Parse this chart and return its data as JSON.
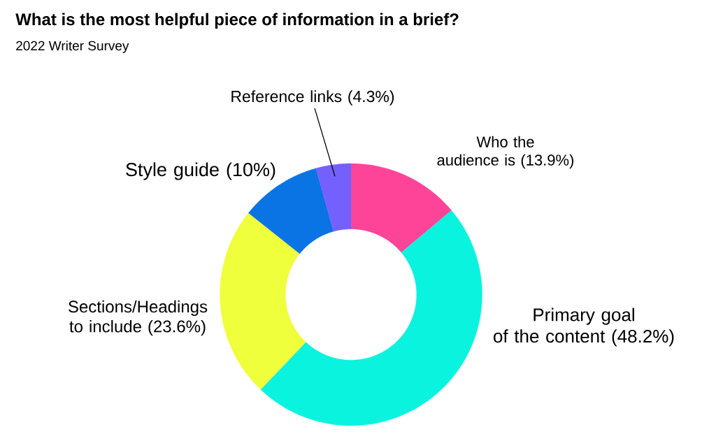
{
  "chart_data": {
    "type": "donut",
    "title": "What is the most helpful piece of information in a brief?",
    "subtitle": "2022 Writer Survey",
    "categories": [
      "Who the audience is (13.9%)",
      "Primary goal of the content (48.2%)",
      "Sections/Headings to include (23.6%)",
      "Style guide (10%)",
      "Reference links (4.3%)"
    ],
    "values": [
      13.9,
      48.2,
      23.6,
      10,
      4.3
    ],
    "colors": [
      "#fe4499",
      "#0af3df",
      "#f0ff3b",
      "#0a74e5",
      "#7460ff"
    ]
  }
}
